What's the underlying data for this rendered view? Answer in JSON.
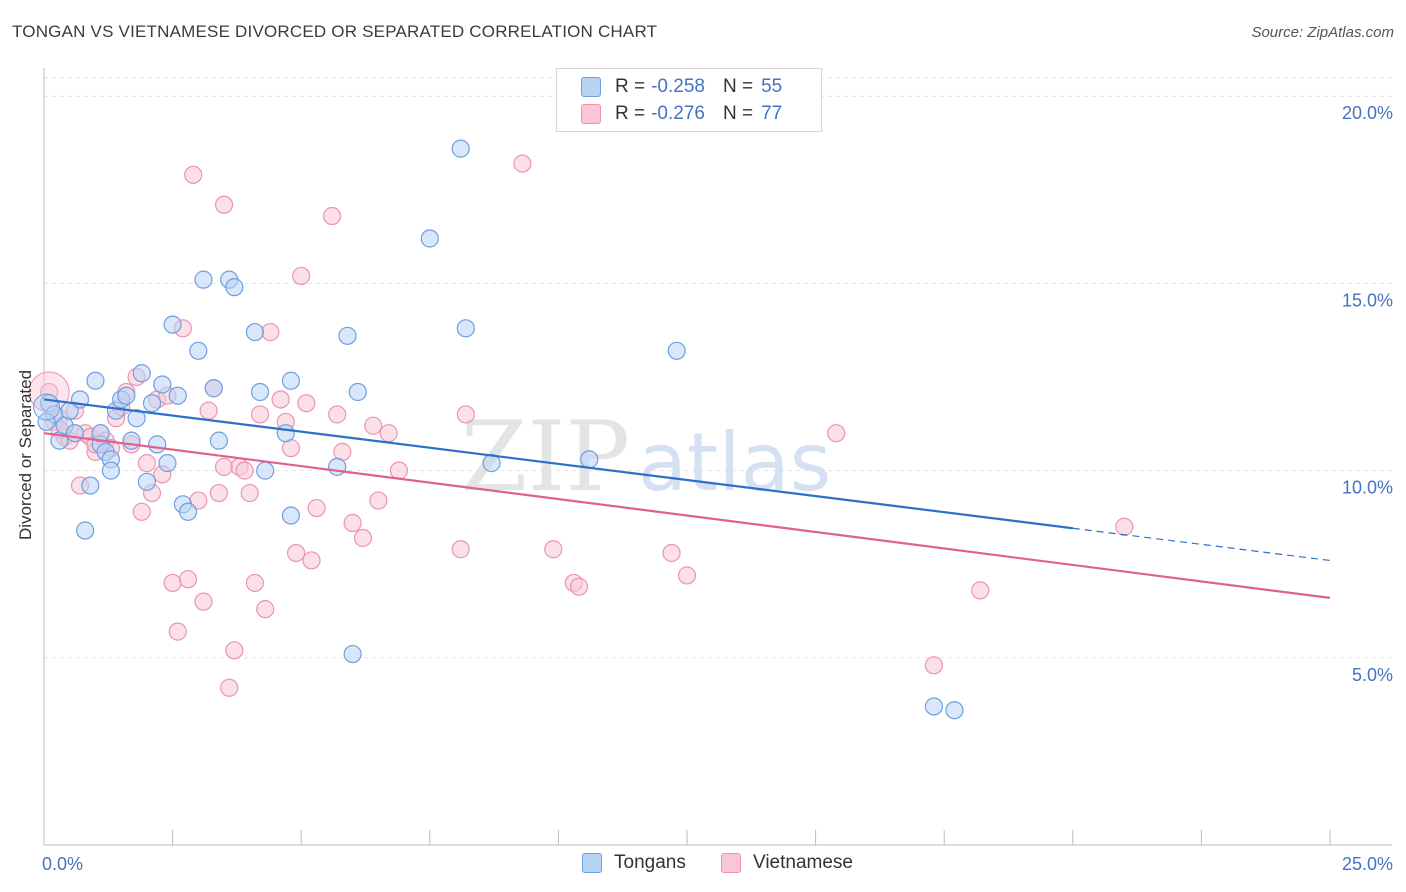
{
  "title": "TONGAN VS VIETNAMESE DIVORCED OR SEPARATED CORRELATION CHART",
  "source": "Source: ZipAtlas.com",
  "watermark": {
    "zip": "ZIP",
    "atlas": "atlas"
  },
  "legend_top": [
    {
      "r_label": "R =",
      "r_value": "-0.258",
      "n_label": "N =",
      "n_value": "55"
    },
    {
      "r_label": "R =",
      "r_value": "-0.276",
      "n_label": "N =",
      "n_value": "77"
    }
  ],
  "colors": {
    "tongans_fill": "#b9d3f5",
    "tongans_stroke": "#6f9fe0",
    "tongans_line": "#2c6fcc",
    "vietnamese_fill": "#f8c6d6",
    "vietnamese_stroke": "#ec94b1",
    "vietnamese_line": "#e0608f",
    "tick_label": "#4472c4",
    "grid": "#e3e3e3"
  },
  "chart_data": {
    "type": "scatter",
    "title": "TONGAN VS VIETNAMESE DIVORCED OR SEPARATED CORRELATION CHART",
    "xlabel": "",
    "ylabel": "Divorced or Separated",
    "xlim": [
      0,
      25
    ],
    "ylim": [
      0,
      20.7
    ],
    "x_tick_labels": [
      "0.0%",
      "25.0%"
    ],
    "y_ticks": [
      5,
      10,
      15,
      20
    ],
    "y_tick_labels": [
      "5.0%",
      "10.0%",
      "15.0%",
      "20.0%"
    ],
    "grid": "horizontal dashed",
    "legend_placement": "top-center and bottom",
    "series": [
      {
        "name": "Tongans",
        "r": -0.258,
        "n": 55,
        "trend": {
          "x0": 0,
          "y0": 11.9,
          "x1": 25,
          "y1": 7.6,
          "solid_until_x": 20
        },
        "points": [
          [
            0.1,
            11.8
          ],
          [
            0.2,
            11.5
          ],
          [
            0.3,
            10.8
          ],
          [
            0.4,
            11.2
          ],
          [
            0.5,
            11.6
          ],
          [
            0.6,
            11.0
          ],
          [
            0.7,
            11.9
          ],
          [
            0.8,
            8.4
          ],
          [
            0.9,
            9.6
          ],
          [
            1.0,
            12.4
          ],
          [
            1.1,
            10.7
          ],
          [
            1.2,
            10.5
          ],
          [
            1.3,
            10.3
          ],
          [
            1.3,
            10.0
          ],
          [
            1.4,
            11.6
          ],
          [
            1.5,
            11.9
          ],
          [
            1.6,
            12.0
          ],
          [
            1.7,
            10.8
          ],
          [
            1.8,
            11.4
          ],
          [
            1.9,
            12.6
          ],
          [
            2.0,
            9.7
          ],
          [
            2.1,
            11.8
          ],
          [
            2.2,
            10.7
          ],
          [
            2.3,
            12.3
          ],
          [
            2.4,
            10.2
          ],
          [
            2.5,
            13.9
          ],
          [
            2.6,
            12.0
          ],
          [
            2.7,
            9.1
          ],
          [
            2.8,
            8.9
          ],
          [
            3.0,
            13.2
          ],
          [
            3.1,
            15.1
          ],
          [
            3.3,
            12.2
          ],
          [
            3.4,
            10.8
          ],
          [
            3.6,
            15.1
          ],
          [
            3.7,
            14.9
          ],
          [
            4.1,
            13.7
          ],
          [
            4.2,
            12.1
          ],
          [
            4.3,
            10.0
          ],
          [
            4.8,
            12.4
          ],
          [
            4.7,
            11.0
          ],
          [
            4.8,
            8.8
          ],
          [
            5.7,
            10.1
          ],
          [
            5.9,
            13.6
          ],
          [
            6.0,
            5.1
          ],
          [
            6.1,
            12.1
          ],
          [
            7.5,
            16.2
          ],
          [
            8.1,
            18.6
          ],
          [
            8.2,
            13.8
          ],
          [
            8.7,
            10.2
          ],
          [
            10.6,
            10.3
          ],
          [
            12.3,
            13.2
          ],
          [
            17.3,
            3.7
          ],
          [
            17.7,
            3.6
          ],
          [
            0.05,
            11.3
          ],
          [
            1.1,
            11.0
          ]
        ]
      },
      {
        "name": "Vietnamese",
        "r": -0.276,
        "n": 77,
        "trend": {
          "x0": 0,
          "y0": 11.0,
          "x1": 25,
          "y1": 6.6
        },
        "points": [
          [
            0.1,
            12.1
          ],
          [
            0.2,
            11.3
          ],
          [
            0.3,
            11.4
          ],
          [
            0.4,
            10.9
          ],
          [
            0.5,
            10.8
          ],
          [
            0.6,
            11.6
          ],
          [
            0.7,
            9.6
          ],
          [
            0.8,
            11.0
          ],
          [
            0.9,
            10.9
          ],
          [
            1.0,
            10.5
          ],
          [
            1.1,
            11.0
          ],
          [
            1.2,
            10.8
          ],
          [
            1.3,
            10.6
          ],
          [
            1.4,
            11.4
          ],
          [
            1.5,
            11.7
          ],
          [
            1.6,
            12.1
          ],
          [
            1.7,
            10.7
          ],
          [
            1.8,
            12.5
          ],
          [
            1.9,
            8.9
          ],
          [
            2.0,
            10.2
          ],
          [
            2.1,
            9.4
          ],
          [
            2.2,
            11.9
          ],
          [
            2.3,
            9.9
          ],
          [
            2.4,
            12.0
          ],
          [
            2.5,
            7.0
          ],
          [
            2.6,
            5.7
          ],
          [
            2.7,
            13.8
          ],
          [
            2.8,
            7.1
          ],
          [
            2.9,
            17.9
          ],
          [
            3.0,
            9.2
          ],
          [
            3.1,
            6.5
          ],
          [
            3.2,
            11.6
          ],
          [
            3.3,
            12.2
          ],
          [
            3.4,
            9.4
          ],
          [
            3.5,
            17.1
          ],
          [
            3.5,
            10.1
          ],
          [
            3.6,
            4.2
          ],
          [
            3.7,
            5.2
          ],
          [
            3.8,
            10.1
          ],
          [
            3.9,
            10.0
          ],
          [
            4.0,
            9.4
          ],
          [
            4.1,
            7.0
          ],
          [
            4.2,
            11.5
          ],
          [
            4.3,
            6.3
          ],
          [
            4.4,
            13.7
          ],
          [
            4.6,
            11.9
          ],
          [
            4.7,
            11.3
          ],
          [
            4.8,
            10.6
          ],
          [
            4.9,
            7.8
          ],
          [
            5.0,
            15.2
          ],
          [
            5.1,
            11.8
          ],
          [
            5.2,
            7.6
          ],
          [
            5.3,
            9.0
          ],
          [
            5.6,
            16.8
          ],
          [
            5.7,
            11.5
          ],
          [
            5.8,
            10.5
          ],
          [
            6.0,
            8.6
          ],
          [
            6.2,
            8.2
          ],
          [
            6.4,
            11.2
          ],
          [
            6.5,
            9.2
          ],
          [
            6.7,
            11.0
          ],
          [
            6.9,
            10.0
          ],
          [
            8.1,
            7.9
          ],
          [
            8.2,
            11.5
          ],
          [
            9.3,
            18.2
          ],
          [
            9.9,
            7.9
          ],
          [
            10.3,
            7.0
          ],
          [
            10.4,
            6.9
          ],
          [
            12.2,
            7.8
          ],
          [
            12.5,
            7.2
          ],
          [
            15.4,
            11.0
          ],
          [
            17.3,
            4.8
          ],
          [
            18.2,
            6.8
          ],
          [
            21.0,
            8.5
          ],
          [
            0.3,
            11.1
          ],
          [
            0.6,
            11.0
          ],
          [
            1.0,
            10.7
          ]
        ]
      }
    ]
  }
}
